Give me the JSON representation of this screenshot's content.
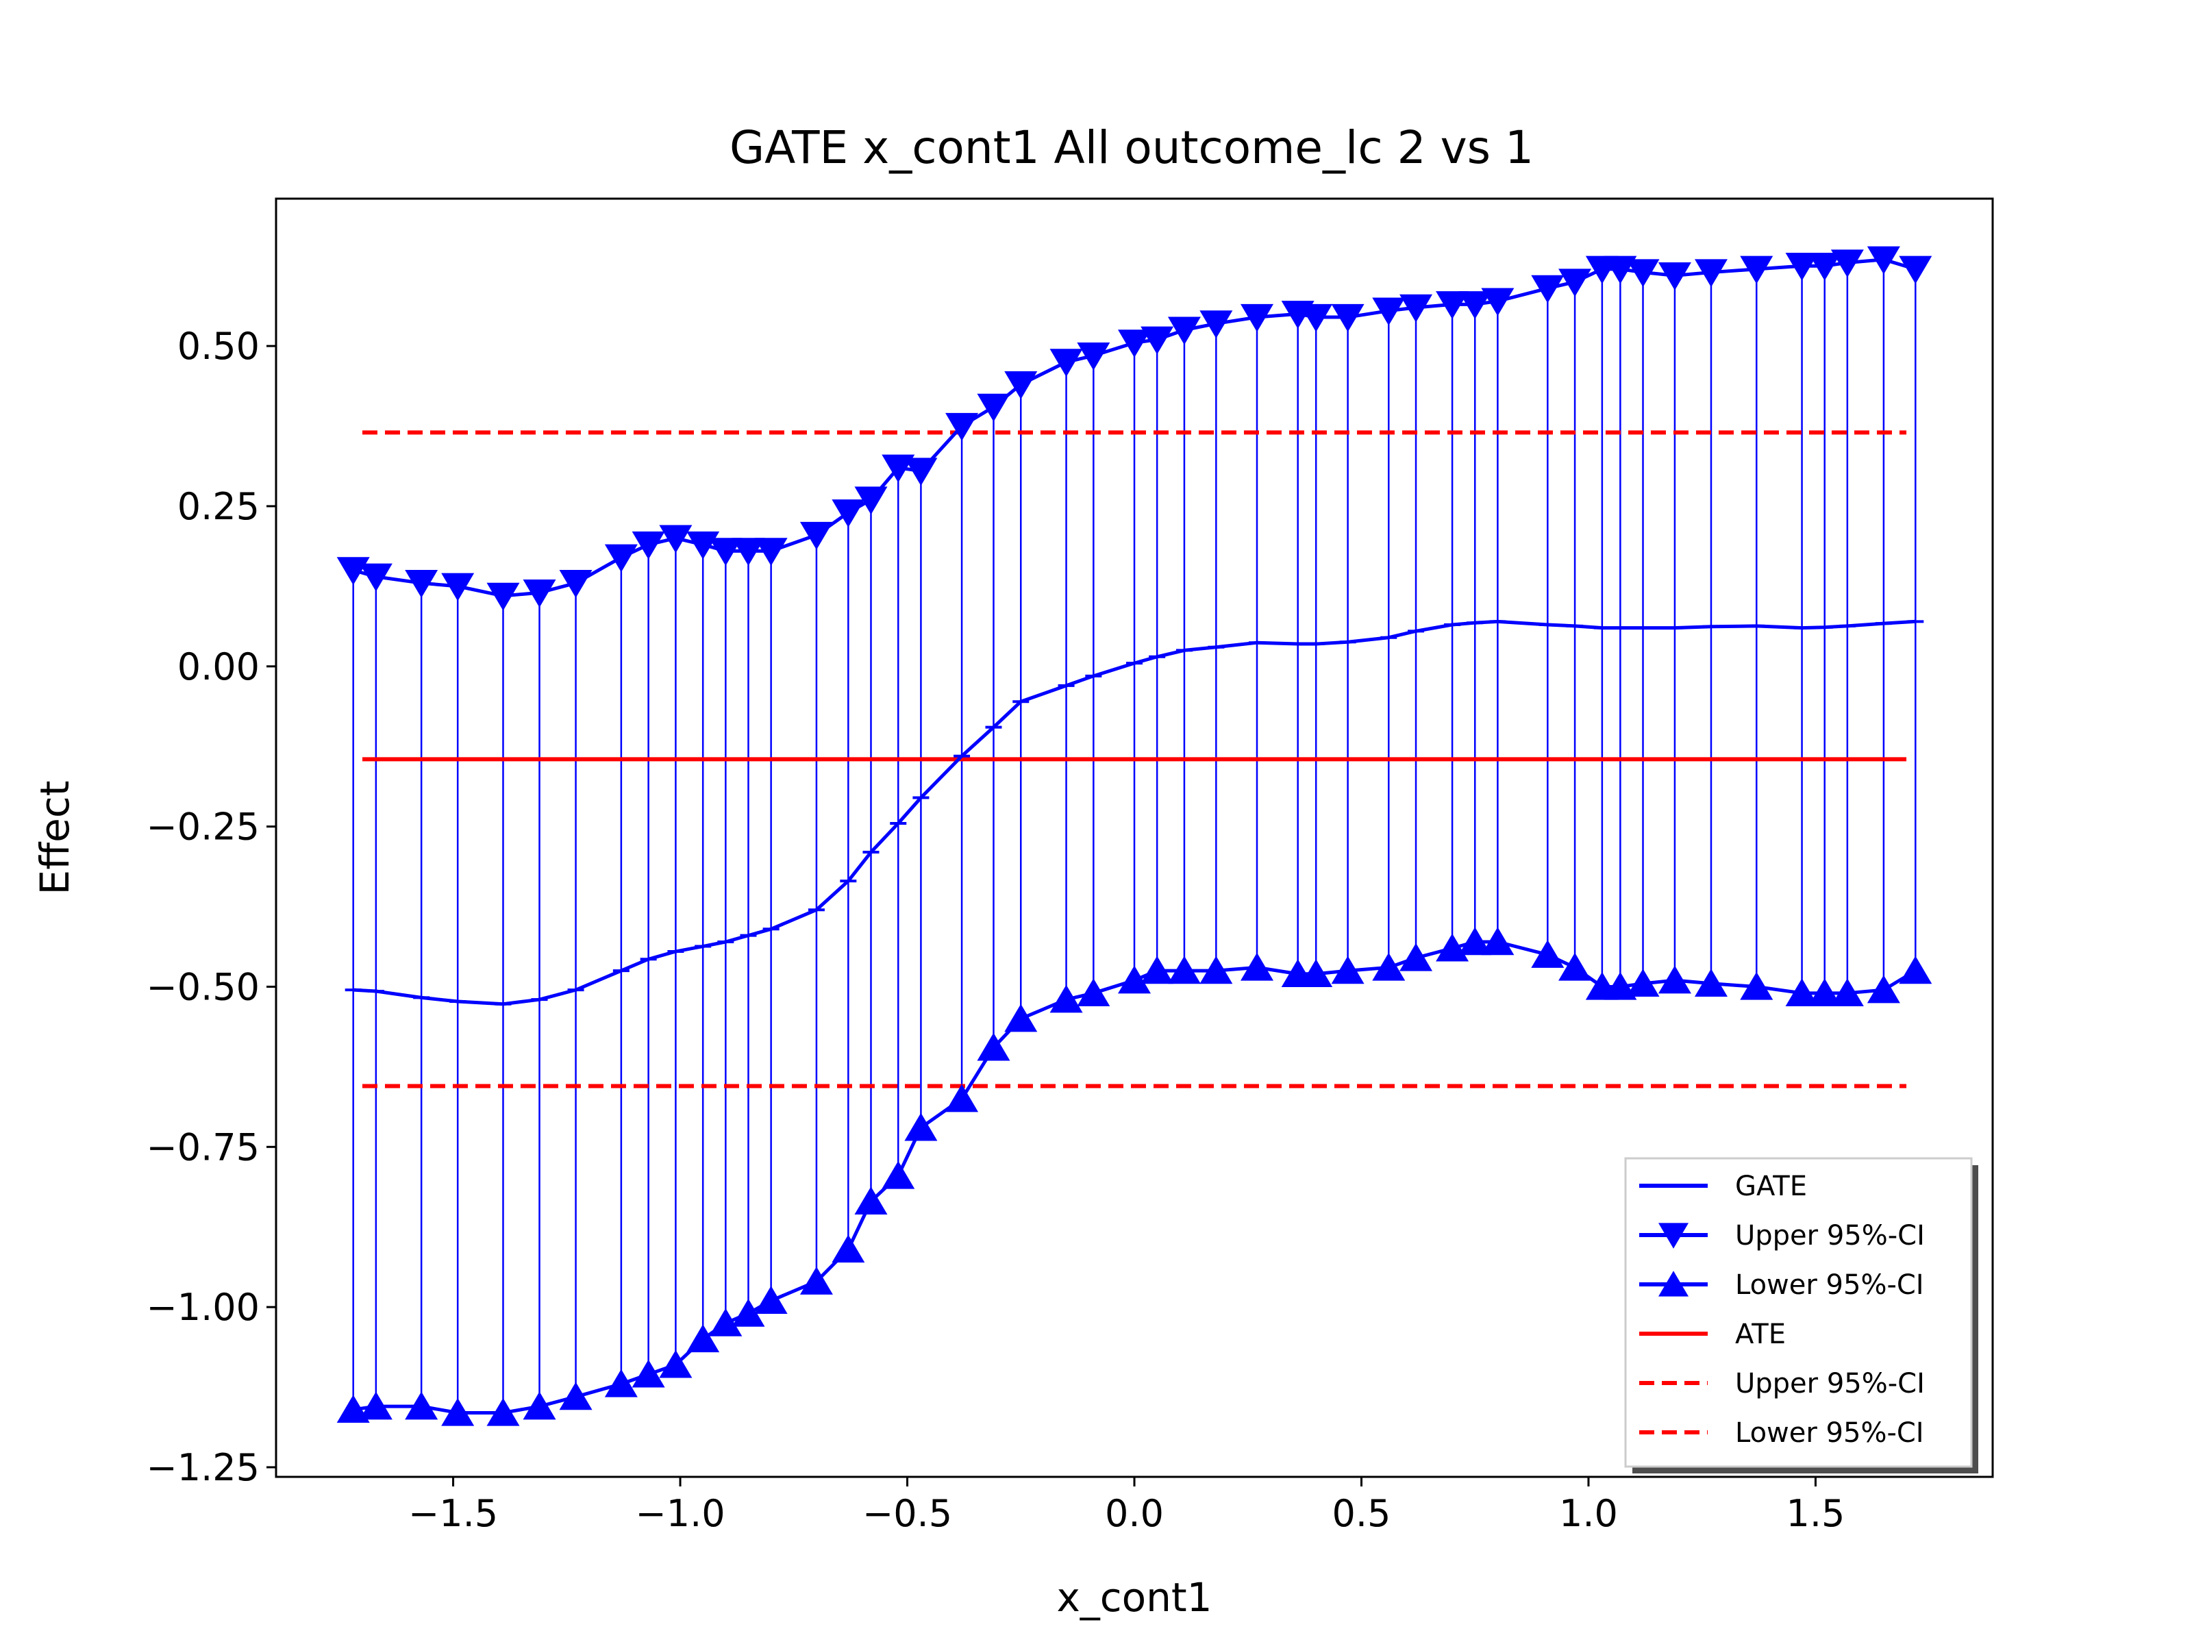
{
  "chart_data": {
    "type": "line",
    "title": "GATE x_cont1 All outcome_lc  2 vs 1",
    "xlabel": "x_cont1",
    "ylabel": "Effect",
    "xlim": [
      -1.89,
      1.89
    ],
    "ylim": [
      -1.265,
      0.73
    ],
    "xticks": [
      -1.5,
      -1.0,
      -0.5,
      0.0,
      0.5,
      1.0,
      1.5
    ],
    "xtick_labels": [
      "−1.5",
      "−1.0",
      "−0.5",
      "0.0",
      "0.5",
      "1.0",
      "1.5"
    ],
    "yticks": [
      0.5,
      0.25,
      0.0,
      -0.25,
      -0.5,
      -0.75,
      -1.0,
      -1.25
    ],
    "ytick_labels": [
      "0.50",
      "0.25",
      "0.00",
      "−0.25",
      "−0.50",
      "−0.75",
      "−1.00",
      "−1.25"
    ],
    "grid": false,
    "legend_position": "lower-right",
    "x": [
      -1.72,
      -1.67,
      -1.57,
      -1.49,
      -1.39,
      -1.31,
      -1.23,
      -1.13,
      -1.07,
      -1.01,
      -0.95,
      -0.9,
      -0.85,
      -0.8,
      -0.7,
      -0.63,
      -0.58,
      -0.52,
      -0.47,
      -0.38,
      -0.31,
      -0.25,
      -0.15,
      -0.09,
      0.0,
      0.05,
      0.11,
      0.18,
      0.27,
      0.36,
      0.4,
      0.47,
      0.56,
      0.62,
      0.7,
      0.75,
      0.8,
      0.91,
      0.97,
      1.03,
      1.07,
      1.12,
      1.19,
      1.27,
      1.37,
      1.47,
      1.52,
      1.57,
      1.65,
      1.72
    ],
    "series": [
      {
        "name": "GATE",
        "color": "#0000ff",
        "style": "solid",
        "values": [
          -0.505,
          -0.507,
          -0.517,
          -0.523,
          -0.527,
          -0.52,
          -0.505,
          -0.475,
          -0.457,
          -0.445,
          -0.437,
          -0.43,
          -0.42,
          -0.41,
          -0.38,
          -0.335,
          -0.29,
          -0.245,
          -0.205,
          -0.14,
          -0.095,
          -0.055,
          -0.03,
          -0.015,
          0.005,
          0.015,
          0.025,
          0.03,
          0.037,
          0.035,
          0.035,
          0.038,
          0.045,
          0.055,
          0.065,
          0.068,
          0.07,
          0.065,
          0.063,
          0.06,
          0.06,
          0.06,
          0.06,
          0.062,
          0.063,
          0.06,
          0.061,
          0.063,
          0.067,
          0.07
        ]
      },
      {
        "name": "Upper 95%-CI",
        "color": "#0000ff",
        "style": "solid",
        "marker": "triangle-down",
        "values": [
          0.15,
          0.14,
          0.13,
          0.125,
          0.11,
          0.115,
          0.13,
          0.17,
          0.19,
          0.2,
          0.19,
          0.18,
          0.18,
          0.18,
          0.205,
          0.24,
          0.26,
          0.31,
          0.305,
          0.375,
          0.405,
          0.44,
          0.475,
          0.485,
          0.505,
          0.51,
          0.525,
          0.535,
          0.545,
          0.55,
          0.545,
          0.545,
          0.555,
          0.56,
          0.565,
          0.565,
          0.57,
          0.59,
          0.6,
          0.62,
          0.62,
          0.615,
          0.61,
          0.615,
          0.62,
          0.625,
          0.625,
          0.63,
          0.635,
          0.62
        ]
      },
      {
        "name": "Lower 95%-CI",
        "color": "#0000ff",
        "style": "solid",
        "marker": "triangle-up",
        "values": [
          -1.16,
          -1.155,
          -1.155,
          -1.165,
          -1.165,
          -1.155,
          -1.14,
          -1.12,
          -1.105,
          -1.09,
          -1.05,
          -1.025,
          -1.01,
          -0.99,
          -0.96,
          -0.91,
          -0.835,
          -0.795,
          -0.72,
          -0.675,
          -0.595,
          -0.55,
          -0.52,
          -0.51,
          -0.49,
          -0.475,
          -0.475,
          -0.475,
          -0.47,
          -0.48,
          -0.48,
          -0.475,
          -0.47,
          -0.455,
          -0.44,
          -0.43,
          -0.43,
          -0.45,
          -0.47,
          -0.5,
          -0.5,
          -0.495,
          -0.49,
          -0.495,
          -0.5,
          -0.51,
          -0.51,
          -0.51,
          -0.505,
          -0.475
        ]
      },
      {
        "name": "ATE",
        "color": "#ff0000",
        "style": "solid",
        "x_range": [
          -1.7,
          1.7
        ],
        "value": -0.145
      },
      {
        "name": "Upper 95%-CI",
        "color": "#ff0000",
        "style": "dashed",
        "x_range": [
          -1.7,
          1.7
        ],
        "value": 0.365
      },
      {
        "name": "Lower 95%-CI",
        "color": "#ff0000",
        "style": "dashed",
        "x_range": [
          -1.7,
          1.7
        ],
        "value": -0.655
      }
    ]
  }
}
